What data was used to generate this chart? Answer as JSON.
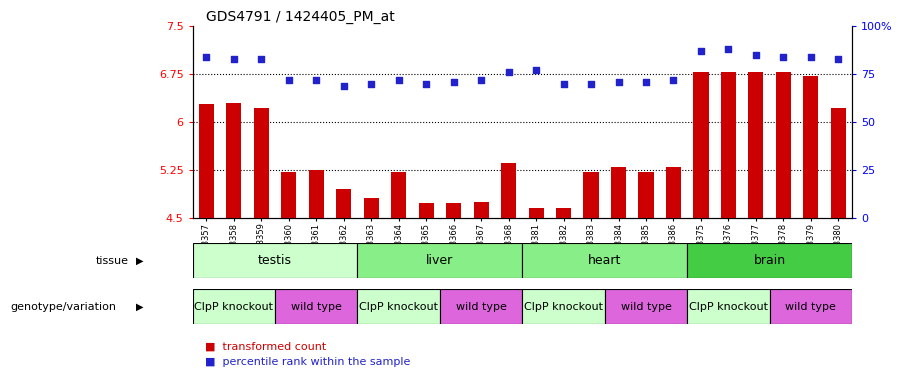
{
  "title": "GDS4791 / 1424405_PM_at",
  "samples": [
    "GSM988357",
    "GSM988358",
    "GSM988359",
    "GSM988360",
    "GSM988361",
    "GSM988362",
    "GSM988363",
    "GSM988364",
    "GSM988365",
    "GSM988366",
    "GSM988367",
    "GSM988368",
    "GSM988381",
    "GSM988382",
    "GSM988383",
    "GSM988384",
    "GSM988385",
    "GSM988386",
    "GSM988375",
    "GSM988376",
    "GSM988377",
    "GSM988378",
    "GSM988379",
    "GSM988380"
  ],
  "bar_values": [
    6.28,
    6.3,
    6.22,
    5.22,
    5.25,
    4.95,
    4.82,
    5.22,
    4.73,
    4.73,
    4.75,
    5.36,
    4.65,
    4.65,
    5.22,
    5.3,
    5.22,
    5.3,
    6.78,
    6.78,
    6.78,
    6.78,
    6.72,
    6.22
  ],
  "percentile_values": [
    84,
    83,
    83,
    72,
    72,
    69,
    70,
    72,
    70,
    71,
    72,
    76,
    77,
    70,
    70,
    71,
    71,
    72,
    87,
    88,
    85,
    84,
    84,
    83
  ],
  "ylim_left": [
    4.5,
    7.5
  ],
  "ylim_right": [
    0,
    100
  ],
  "yticks_left": [
    4.5,
    5.25,
    6.0,
    6.75,
    7.5
  ],
  "ytick_labels_left": [
    "4.5",
    "5.25",
    "6",
    "6.75",
    "7.5"
  ],
  "yticks_right": [
    0,
    25,
    50,
    75,
    100
  ],
  "ytick_labels_right": [
    "0",
    "25",
    "50",
    "75",
    "100%"
  ],
  "hlines": [
    5.25,
    6.0,
    6.75
  ],
  "bar_color": "#cc0000",
  "dot_color": "#2222cc",
  "tissue_groups": [
    {
      "label": "testis",
      "start": 0,
      "end": 6,
      "color": "#ccffcc"
    },
    {
      "label": "liver",
      "start": 6,
      "end": 12,
      "color": "#88ee88"
    },
    {
      "label": "heart",
      "start": 12,
      "end": 18,
      "color": "#88ee88"
    },
    {
      "label": "brain",
      "start": 18,
      "end": 24,
      "color": "#44cc44"
    }
  ],
  "genotype_groups": [
    {
      "label": "ClpP knockout",
      "start": 0,
      "end": 3,
      "color": "#ccffcc"
    },
    {
      "label": "wild type",
      "start": 3,
      "end": 6,
      "color": "#dd66dd"
    },
    {
      "label": "ClpP knockout",
      "start": 6,
      "end": 9,
      "color": "#ccffcc"
    },
    {
      "label": "wild type",
      "start": 9,
      "end": 12,
      "color": "#dd66dd"
    },
    {
      "label": "ClpP knockout",
      "start": 12,
      "end": 15,
      "color": "#ccffcc"
    },
    {
      "label": "wild type",
      "start": 15,
      "end": 18,
      "color": "#dd66dd"
    },
    {
      "label": "ClpP knockout",
      "start": 18,
      "end": 21,
      "color": "#ccffcc"
    },
    {
      "label": "wild type",
      "start": 21,
      "end": 24,
      "color": "#dd66dd"
    }
  ],
  "legend_labels": [
    "transformed count",
    "percentile rank within the sample"
  ],
  "legend_colors": [
    "#cc0000",
    "#2222cc"
  ],
  "bg_color": "#ffffff"
}
